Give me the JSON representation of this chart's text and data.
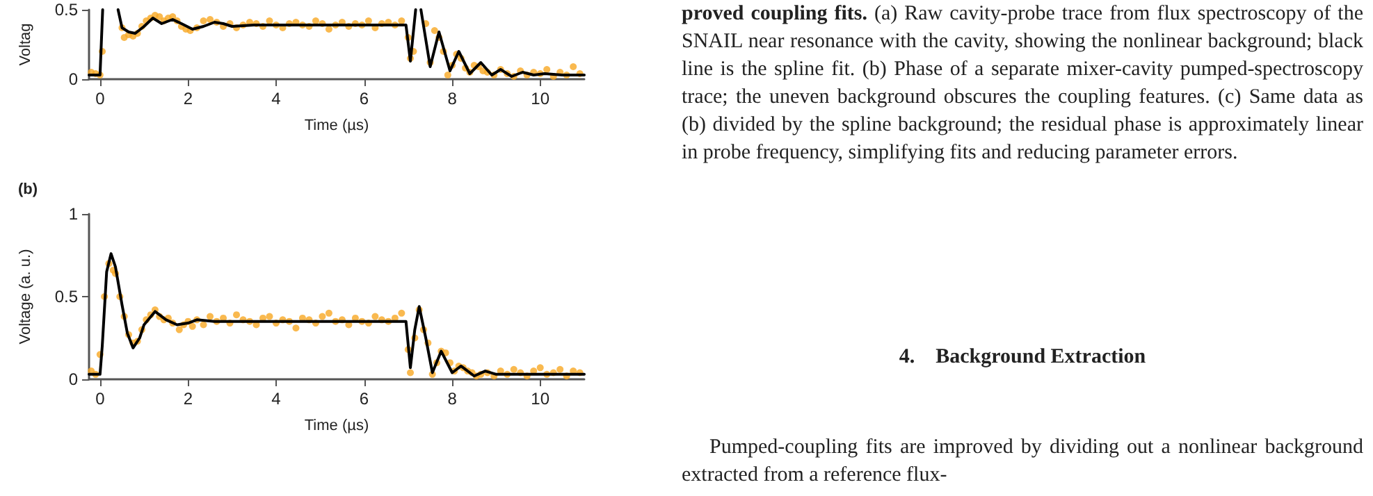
{
  "chart_data": [
    {
      "type": "scatter",
      "xlabel": "Time (µs)",
      "ylabel": "Voltag",
      "xlim": [
        -0.25,
        11
      ],
      "xticks": [
        0,
        2,
        4,
        6,
        8,
        10
      ],
      "ylim": [
        0,
        0.5
      ],
      "yticks": [
        0,
        0.5
      ],
      "grid": false,
      "series": [
        {
          "type": "scatter",
          "marker": "circle",
          "color": "#f7a823",
          "x": [
            -0.2,
            -0.1,
            0.0,
            0.05,
            0.5,
            0.55,
            0.65,
            0.75,
            0.85,
            0.95,
            1.05,
            1.15,
            1.25,
            1.35,
            1.45,
            1.55,
            1.65,
            1.75,
            1.85,
            1.95,
            2.05,
            2.2,
            2.35,
            2.5,
            2.65,
            2.8,
            2.95,
            3.1,
            3.25,
            3.4,
            3.55,
            3.7,
            3.85,
            4.0,
            4.15,
            4.3,
            4.45,
            4.6,
            4.75,
            4.9,
            5.05,
            5.2,
            5.35,
            5.5,
            5.65,
            5.8,
            5.95,
            6.1,
            6.25,
            6.4,
            6.55,
            6.7,
            6.85,
            7.0,
            7.05,
            7.12,
            7.4,
            7.5,
            7.6,
            7.7,
            7.8,
            7.9,
            8.0,
            8.1,
            8.2,
            8.3,
            8.4,
            8.5,
            8.6,
            8.7,
            8.8,
            8.95,
            9.1,
            9.25,
            9.4,
            9.55,
            9.7,
            9.85,
            10.0,
            10.15,
            10.3,
            10.45,
            10.6,
            10.75,
            10.9
          ],
          "values": [
            0.05,
            0.04,
            0.03,
            0.2,
            0.37,
            0.3,
            0.32,
            0.31,
            0.33,
            0.38,
            0.42,
            0.44,
            0.46,
            0.45,
            0.42,
            0.44,
            0.45,
            0.42,
            0.38,
            0.36,
            0.35,
            0.37,
            0.42,
            0.43,
            0.41,
            0.38,
            0.4,
            0.37,
            0.39,
            0.41,
            0.4,
            0.38,
            0.42,
            0.39,
            0.37,
            0.4,
            0.41,
            0.39,
            0.38,
            0.42,
            0.4,
            0.36,
            0.39,
            0.41,
            0.38,
            0.4,
            0.39,
            0.42,
            0.37,
            0.4,
            0.41,
            0.39,
            0.42,
            0.3,
            0.15,
            0.2,
            0.4,
            0.12,
            0.35,
            0.3,
            0.2,
            0.03,
            0.1,
            0.18,
            0.15,
            0.08,
            0.05,
            0.1,
            0.09,
            0.06,
            0.05,
            0.03,
            0.07,
            0.04,
            0.02,
            0.06,
            0.03,
            0.05,
            0.04,
            0.07,
            0.02,
            0.05,
            0.03,
            0.09,
            0.04
          ]
        },
        {
          "type": "line",
          "marker": "none",
          "line_style": "solid",
          "color": "#000000",
          "x": [
            -0.25,
            0,
            0.06,
            0.2,
            0.41,
            0.5,
            0.65,
            0.8,
            1.0,
            1.2,
            1.4,
            1.65,
            1.85,
            2.1,
            2.35,
            2.6,
            2.8,
            3.0,
            3.5,
            4,
            5,
            6,
            6.95,
            7.05,
            7.17,
            7.23,
            7.29,
            7.5,
            7.7,
            7.95,
            8.15,
            8.4,
            8.65,
            8.9,
            9.1,
            9.35,
            9.6,
            9.85,
            10.1,
            10.5,
            11
          ],
          "values": [
            0.03,
            0.03,
            0.5,
            null,
            0.5,
            0.37,
            0.34,
            0.33,
            0.38,
            0.44,
            0.4,
            0.43,
            0.4,
            0.36,
            0.38,
            0.41,
            0.4,
            0.38,
            0.39,
            0.39,
            0.39,
            0.39,
            0.39,
            0.13,
            0.5,
            null,
            0.5,
            0.09,
            0.34,
            0.06,
            0.2,
            0.04,
            0.12,
            0.03,
            0.07,
            0.02,
            0.05,
            0.03,
            0.04,
            0.03,
            0.03
          ]
        }
      ]
    },
    {
      "type": "scatter",
      "title": "(b)",
      "xlabel": "Time (µs)",
      "ylabel": "Voltage (a. u.)",
      "xlim": [
        -0.25,
        11
      ],
      "xticks": [
        0,
        2,
        4,
        6,
        8,
        10
      ],
      "ylim": [
        0,
        1
      ],
      "yticks": [
        0,
        0.5,
        1
      ],
      "grid": false,
      "series": [
        {
          "type": "scatter",
          "marker": "circle",
          "color": "#f7a823",
          "x": [
            -0.2,
            -0.1,
            0.0,
            0.1,
            0.2,
            0.3,
            0.35,
            0.45,
            0.55,
            0.65,
            0.75,
            0.85,
            0.95,
            1.05,
            1.15,
            1.25,
            1.35,
            1.45,
            1.55,
            1.65,
            1.8,
            1.9,
            2.0,
            2.1,
            2.2,
            2.35,
            2.5,
            2.65,
            2.8,
            2.95,
            3.1,
            3.25,
            3.4,
            3.55,
            3.7,
            3.85,
            4.0,
            4.15,
            4.3,
            4.45,
            4.6,
            4.75,
            4.9,
            5.05,
            5.2,
            5.35,
            5.5,
            5.65,
            5.8,
            5.95,
            6.1,
            6.25,
            6.4,
            6.55,
            6.7,
            6.85,
            7.0,
            7.05,
            7.15,
            7.25,
            7.35,
            7.45,
            7.55,
            7.65,
            7.75,
            7.85,
            7.95,
            8.05,
            8.15,
            8.25,
            8.35,
            8.45,
            8.55,
            8.65,
            8.8,
            8.95,
            9.1,
            9.25,
            9.4,
            9.55,
            9.7,
            9.85,
            10.0,
            10.15,
            10.3,
            10.45,
            10.6,
            10.75,
            10.9
          ],
          "values": [
            0.05,
            0.03,
            0.15,
            0.5,
            0.7,
            0.66,
            0.64,
            0.5,
            0.38,
            0.27,
            0.22,
            0.23,
            0.3,
            0.36,
            0.39,
            0.42,
            0.38,
            0.36,
            0.37,
            0.34,
            0.3,
            0.33,
            0.35,
            0.32,
            0.36,
            0.33,
            0.38,
            0.35,
            0.37,
            0.34,
            0.39,
            0.36,
            0.35,
            0.33,
            0.37,
            0.38,
            0.34,
            0.36,
            0.35,
            0.31,
            0.37,
            0.36,
            0.34,
            0.38,
            0.4,
            0.35,
            0.36,
            0.33,
            0.37,
            0.35,
            0.34,
            0.38,
            0.36,
            0.35,
            0.37,
            0.4,
            0.18,
            0.04,
            0.25,
            0.42,
            0.3,
            0.22,
            0.03,
            0.1,
            0.17,
            0.16,
            0.1,
            0.05,
            0.08,
            0.07,
            0.05,
            0.04,
            0.02,
            0.03,
            0.04,
            0.02,
            0.05,
            0.03,
            0.06,
            0.04,
            0.02,
            0.05,
            0.07,
            0.03,
            0.04,
            0.06,
            0.02,
            0.05,
            0.04
          ]
        },
        {
          "type": "line",
          "marker": "none",
          "line_style": "solid",
          "color": "#000000",
          "x": [
            -0.25,
            0,
            0.05,
            0.15,
            0.25,
            0.35,
            0.5,
            0.62,
            0.75,
            0.9,
            1.0,
            1.25,
            1.5,
            1.75,
            2.0,
            2.2,
            2.6,
            3,
            4,
            5,
            6,
            6.95,
            7.05,
            7.15,
            7.25,
            7.4,
            7.55,
            7.75,
            8.0,
            8.2,
            8.5,
            8.75,
            9.0,
            10,
            11
          ],
          "values": [
            0.03,
            0.03,
            0.2,
            0.65,
            0.76,
            0.68,
            0.45,
            0.28,
            0.19,
            0.25,
            0.33,
            0.41,
            0.36,
            0.33,
            0.34,
            0.36,
            0.35,
            0.35,
            0.35,
            0.35,
            0.35,
            0.35,
            0.07,
            0.3,
            0.44,
            0.25,
            0.04,
            0.17,
            0.04,
            0.08,
            0.02,
            0.05,
            0.03,
            0.03,
            0.03
          ]
        }
      ]
    },
    {
      "type": "other",
      "title": "4.    Background Extraction",
      "annotations": [
        "proved coupling fits.",
        "(a) Raw cavity-probe trace from flux spectroscopy of the SNAIL near resonance with the cavity, showing the nonlinear background; black line is the spline fit. (b) Phase of a separate mixer-cavity pumped-spectroscopy trace; the uneven background obscures the coupling features. (c) Same data as (b) divided by the spline background; the residual phase is approximately linear in probe frequency, simplifying fits and reducing parameter errors.",
        "Pumped-coupling fits are improved by dividing out a nonlinear background extracted from a reference flux-"
      ]
    }
  ]
}
